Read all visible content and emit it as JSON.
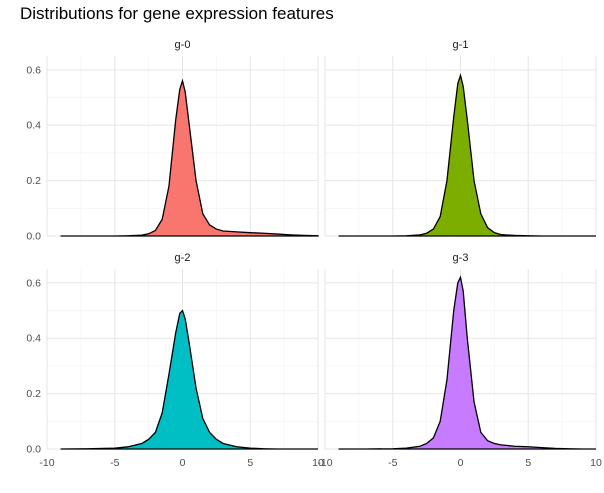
{
  "chart_data": {
    "type": "area",
    "title": "Distributions for gene expression features",
    "xlabel": "",
    "ylabel": "",
    "xlim": [
      -10,
      10
    ],
    "ylim": [
      0,
      0.65
    ],
    "x_ticks": [
      -10,
      -5,
      0,
      5,
      10
    ],
    "x_tick_labels": [
      "-10",
      "-5",
      "0",
      "5",
      "10"
    ],
    "y_ticks": [
      0.0,
      0.2,
      0.4,
      0.6
    ],
    "y_tick_labels": [
      "0.0",
      "0.2",
      "0.4",
      "0.6"
    ],
    "grid": true,
    "facets": [
      {
        "name": "g-0",
        "color": "#F8766D",
        "x": [
          -9,
          -7,
          -5,
          -4,
          -3,
          -2.5,
          -2,
          -1.5,
          -1,
          -0.5,
          -0.2,
          0,
          0.2,
          0.5,
          1,
          1.5,
          2,
          2.5,
          3,
          4,
          5,
          6,
          7,
          8,
          9,
          10
        ],
        "y": [
          0.0,
          0.0,
          0.0,
          0.001,
          0.003,
          0.008,
          0.02,
          0.06,
          0.18,
          0.42,
          0.53,
          0.56,
          0.52,
          0.4,
          0.2,
          0.08,
          0.04,
          0.025,
          0.018,
          0.015,
          0.012,
          0.01,
          0.007,
          0.004,
          0.002,
          0.001
        ]
      },
      {
        "name": "g-1",
        "color": "#7CAE00",
        "x": [
          -9,
          -7,
          -5,
          -4,
          -3,
          -2.5,
          -2,
          -1.5,
          -1,
          -0.5,
          -0.2,
          0,
          0.2,
          0.5,
          1,
          1.5,
          2,
          2.5,
          3,
          4,
          5,
          6,
          7,
          8,
          9,
          10
        ],
        "y": [
          0.0,
          0.0,
          0.0,
          0.001,
          0.004,
          0.01,
          0.025,
          0.07,
          0.2,
          0.43,
          0.55,
          0.58,
          0.54,
          0.42,
          0.2,
          0.08,
          0.03,
          0.012,
          0.005,
          0.002,
          0.001,
          0.0,
          0.0,
          0.0,
          0.0,
          0.0
        ]
      },
      {
        "name": "g-2",
        "color": "#00BFC4",
        "x": [
          -9,
          -7,
          -5,
          -4,
          -3,
          -2.5,
          -2,
          -1.5,
          -1,
          -0.5,
          -0.2,
          0,
          0.2,
          0.5,
          1,
          1.5,
          2,
          2.5,
          3,
          4,
          5,
          6,
          7,
          8,
          9,
          10
        ],
        "y": [
          0.0,
          0.001,
          0.003,
          0.008,
          0.02,
          0.035,
          0.06,
          0.13,
          0.27,
          0.42,
          0.49,
          0.5,
          0.47,
          0.38,
          0.22,
          0.11,
          0.06,
          0.035,
          0.02,
          0.008,
          0.003,
          0.001,
          0.0,
          0.0,
          0.0,
          0.0
        ]
      },
      {
        "name": "g-3",
        "color": "#C77CFF",
        "x": [
          -9,
          -7,
          -5,
          -4,
          -3,
          -2.5,
          -2,
          -1.5,
          -1,
          -0.5,
          -0.2,
          0,
          0.2,
          0.5,
          1,
          1.5,
          2,
          2.5,
          3,
          4,
          5,
          6,
          7,
          8,
          9,
          10
        ],
        "y": [
          0.0,
          0.0,
          0.001,
          0.003,
          0.01,
          0.02,
          0.04,
          0.1,
          0.25,
          0.5,
          0.6,
          0.62,
          0.57,
          0.4,
          0.17,
          0.06,
          0.03,
          0.02,
          0.015,
          0.01,
          0.008,
          0.005,
          0.002,
          0.001,
          0.0,
          0.0
        ]
      }
    ]
  }
}
